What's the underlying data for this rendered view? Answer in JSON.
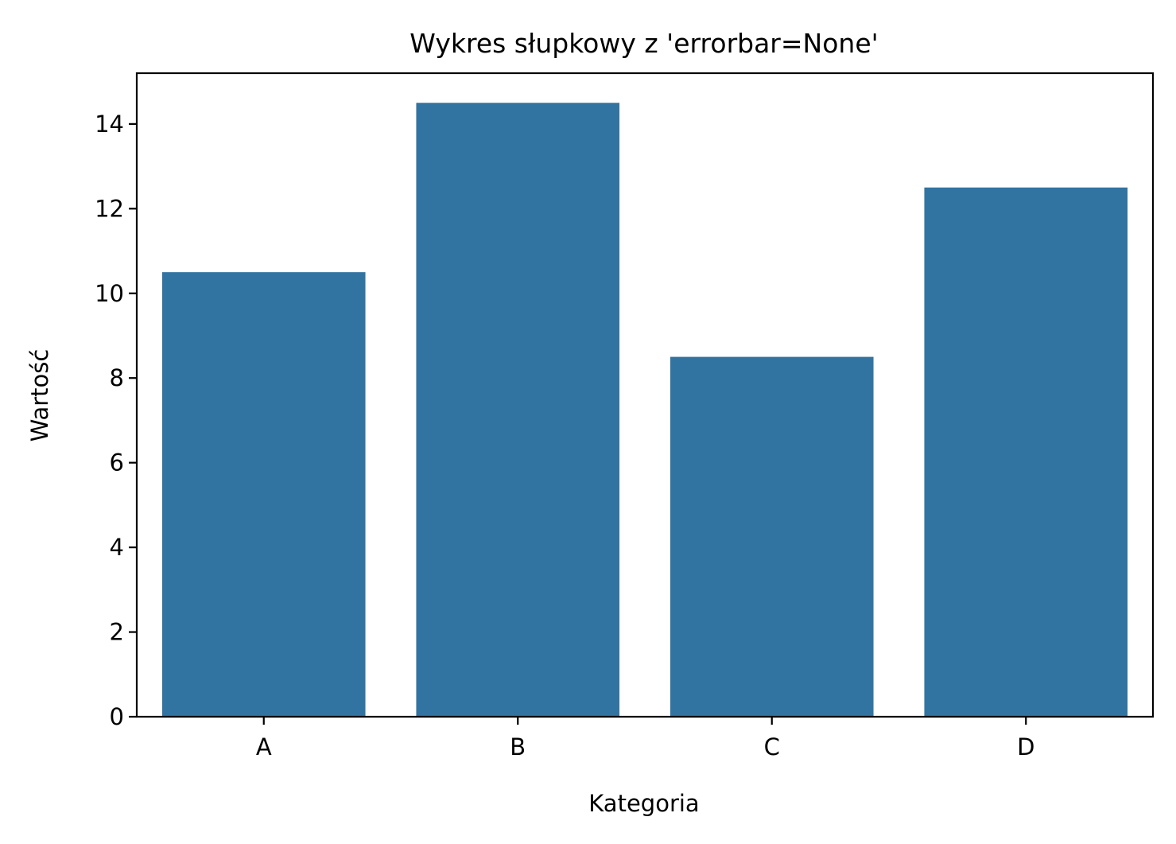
{
  "chart_data": {
    "type": "bar",
    "title": "Wykres słupkowy z 'errorbar=None'",
    "xlabel": "Kategoria",
    "ylabel": "Wartość",
    "categories": [
      "A",
      "B",
      "C",
      "D"
    ],
    "values": [
      10.5,
      14.5,
      8.5,
      12.5
    ],
    "ylim": [
      0,
      15.2
    ],
    "yticks": [
      0,
      2,
      4,
      6,
      8,
      10,
      12,
      14
    ],
    "grid": false,
    "legend": "none",
    "bar_color": "#3274a1"
  }
}
